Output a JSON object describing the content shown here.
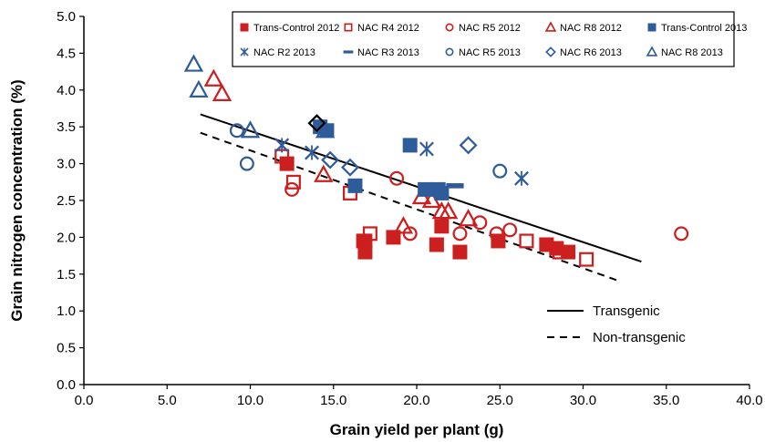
{
  "chart_data": {
    "type": "scatter",
    "xlabel": "Grain yield per plant (g)",
    "ylabel": "Grain nitrogen concentration (%)",
    "xlim": [
      0,
      40
    ],
    "ylim": [
      0,
      5
    ],
    "x_ticks": [
      "0.0",
      "5.0",
      "10.0",
      "15.0",
      "20.0",
      "25.0",
      "30.0",
      "35.0",
      "40.0"
    ],
    "y_ticks": [
      "0.0",
      "0.5",
      "1.0",
      "1.5",
      "2.0",
      "2.5",
      "3.0",
      "3.5",
      "4.0",
      "4.5",
      "5.0"
    ],
    "grid": false,
    "legend_position": "top",
    "colors": {
      "red": "#cc1f1f",
      "blue": "#2e5c9a",
      "black": "#000000"
    },
    "series": [
      {
        "name": "Trans-Control 2012",
        "marker": "filled-square",
        "color": "#cc1f1f",
        "points": [
          [
            12.2,
            3.0
          ],
          [
            16.9,
            1.8
          ],
          [
            16.8,
            1.95
          ],
          [
            18.6,
            2.0
          ],
          [
            21.2,
            1.9
          ],
          [
            21.5,
            2.15
          ],
          [
            22.6,
            1.8
          ],
          [
            24.9,
            1.95
          ],
          [
            27.8,
            1.9
          ],
          [
            28.4,
            1.85
          ],
          [
            29.1,
            1.8
          ]
        ]
      },
      {
        "name": "NAC R4 2012",
        "marker": "open-square",
        "color": "#cc1f1f",
        "points": [
          [
            11.9,
            3.1
          ],
          [
            12.6,
            2.75
          ],
          [
            16.0,
            2.6
          ],
          [
            16.9,
            1.95
          ],
          [
            17.2,
            2.05
          ],
          [
            26.6,
            1.95
          ],
          [
            28.6,
            1.8
          ],
          [
            30.2,
            1.7
          ]
        ]
      },
      {
        "name": "NAC R5 2012",
        "marker": "open-circle",
        "color": "#cc1f1f",
        "points": [
          [
            12.5,
            2.65
          ],
          [
            18.8,
            2.8
          ],
          [
            19.6,
            2.05
          ],
          [
            22.6,
            2.05
          ],
          [
            23.8,
            2.2
          ],
          [
            24.8,
            2.05
          ],
          [
            25.6,
            2.1
          ],
          [
            35.9,
            2.05
          ]
        ]
      },
      {
        "name": "NAC R8 2012",
        "marker": "open-triangle",
        "color": "#cc1f1f",
        "points": [
          [
            7.8,
            4.15
          ],
          [
            8.3,
            3.95
          ],
          [
            14.4,
            2.85
          ],
          [
            19.2,
            2.15
          ],
          [
            20.3,
            2.55
          ],
          [
            20.9,
            2.5
          ],
          [
            21.5,
            2.35
          ],
          [
            21.9,
            2.35
          ],
          [
            23.1,
            2.25
          ]
        ]
      },
      {
        "name": "Trans-Control 2013",
        "marker": "filled-square",
        "color": "#2e5c9a",
        "points": [
          [
            14.2,
            3.5
          ],
          [
            14.6,
            3.45
          ],
          [
            16.3,
            2.7
          ],
          [
            19.6,
            3.25
          ],
          [
            20.5,
            2.65
          ],
          [
            21.3,
            2.65
          ],
          [
            21.5,
            2.6
          ]
        ]
      },
      {
        "name": "NAC R2 2013",
        "marker": "asterisk",
        "color": "#2e5c9a",
        "points": [
          [
            11.9,
            3.25
          ],
          [
            13.7,
            3.15
          ],
          [
            20.6,
            3.2
          ],
          [
            26.3,
            2.8
          ]
        ]
      },
      {
        "name": "NAC R3 2013",
        "marker": "dash",
        "color": "#2e5c9a",
        "points": [
          [
            22.3,
            2.7
          ]
        ]
      },
      {
        "name": "NAC R5 2013",
        "marker": "open-circle",
        "color": "#2e5c9a",
        "points": [
          [
            9.2,
            3.45
          ],
          [
            9.8,
            3.0
          ],
          [
            25.0,
            2.9
          ]
        ]
      },
      {
        "name": "NAC R6 2013",
        "marker": "open-diamond",
        "color": "#2e5c9a",
        "points": [
          [
            14.0,
            3.55
          ],
          [
            14.8,
            3.05
          ],
          [
            16.0,
            2.95
          ],
          [
            23.1,
            3.25
          ]
        ]
      },
      {
        "name": "NAC R8 2013",
        "marker": "open-triangle",
        "color": "#2e5c9a",
        "points": [
          [
            6.6,
            4.35
          ],
          [
            6.9,
            4.0
          ],
          [
            10.0,
            3.45
          ],
          [
            14.5,
            3.45
          ]
        ]
      },
      {
        "name": "",
        "marker": "open-diamond",
        "color": "#000000",
        "points": [
          [
            14.0,
            3.55
          ]
        ]
      }
    ],
    "trend_lines": [
      {
        "name": "Transgenic",
        "style": "solid",
        "x": [
          7.0,
          33.5
        ],
        "y": [
          3.67,
          1.67
        ]
      },
      {
        "name": "Non-transgenic",
        "style": "dashed",
        "x": [
          7.0,
          32.0
        ],
        "y": [
          3.42,
          1.42
        ]
      }
    ]
  }
}
